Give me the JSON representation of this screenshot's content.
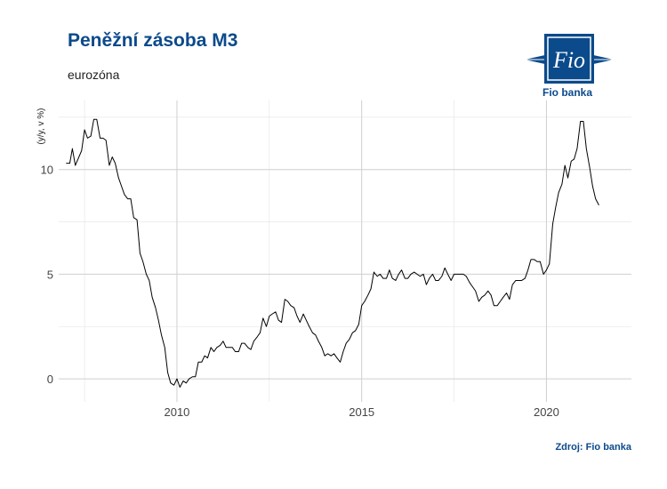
{
  "header": {
    "title": "Peněžní zásoba M3",
    "subtitle": "eurozóna"
  },
  "brand": {
    "logo_glyph": "Fio",
    "name": "Fio banka",
    "color": "#0b4a8b"
  },
  "footer": {
    "source": "Zdroj: Fio banka"
  },
  "chart_data": {
    "type": "line",
    "title": "Peněžní zásoba M3",
    "subtitle": "eurozóna",
    "xlabel": "",
    "ylabel": "(y/y, v %)",
    "xlim": [
      2006.8,
      2022.3
    ],
    "ylim": [
      -1.1,
      13.3
    ],
    "x_ticks": [
      2010,
      2015,
      2020
    ],
    "x_tick_labels": [
      "2010",
      "2015",
      "2020"
    ],
    "y_ticks": [
      0,
      5,
      10
    ],
    "y_tick_labels": [
      "0",
      "5",
      "10"
    ],
    "grid": true,
    "legend": "none",
    "line_color": "#000000",
    "series": [
      {
        "values": [
          [
            2007.0,
            10.3
          ],
          [
            2007.1,
            10.3
          ],
          [
            2007.17,
            11.0
          ],
          [
            2007.25,
            10.2
          ],
          [
            2007.42,
            10.9
          ],
          [
            2007.5,
            11.9
          ],
          [
            2007.58,
            11.5
          ],
          [
            2007.67,
            11.6
          ],
          [
            2007.75,
            12.4
          ],
          [
            2007.83,
            12.4
          ],
          [
            2007.92,
            11.5
          ],
          [
            2008.0,
            11.5
          ],
          [
            2008.08,
            11.4
          ],
          [
            2008.17,
            10.2
          ],
          [
            2008.25,
            10.6
          ],
          [
            2008.33,
            10.3
          ],
          [
            2008.42,
            9.6
          ],
          [
            2008.5,
            9.2
          ],
          [
            2008.58,
            8.8
          ],
          [
            2008.67,
            8.6
          ],
          [
            2008.75,
            8.6
          ],
          [
            2008.83,
            7.7
          ],
          [
            2008.92,
            7.6
          ],
          [
            2009.0,
            6.0
          ],
          [
            2009.08,
            5.6
          ],
          [
            2009.17,
            5.0
          ],
          [
            2009.25,
            4.7
          ],
          [
            2009.33,
            3.9
          ],
          [
            2009.42,
            3.4
          ],
          [
            2009.5,
            2.8
          ],
          [
            2009.58,
            2.1
          ],
          [
            2009.67,
            1.5
          ],
          [
            2009.75,
            0.3
          ],
          [
            2009.83,
            -0.2
          ],
          [
            2009.92,
            -0.3
          ],
          [
            2010.0,
            0.0
          ],
          [
            2010.08,
            -0.4
          ],
          [
            2010.17,
            -0.1
          ],
          [
            2010.25,
            -0.2
          ],
          [
            2010.33,
            0.0
          ],
          [
            2010.42,
            0.1
          ],
          [
            2010.5,
            0.1
          ],
          [
            2010.58,
            0.8
          ],
          [
            2010.67,
            0.8
          ],
          [
            2010.75,
            1.1
          ],
          [
            2010.83,
            1.0
          ],
          [
            2010.92,
            1.5
          ],
          [
            2011.0,
            1.3
          ],
          [
            2011.08,
            1.5
          ],
          [
            2011.17,
            1.6
          ],
          [
            2011.25,
            1.8
          ],
          [
            2011.33,
            1.5
          ],
          [
            2011.42,
            1.5
          ],
          [
            2011.5,
            1.5
          ],
          [
            2011.58,
            1.3
          ],
          [
            2011.67,
            1.3
          ],
          [
            2011.75,
            1.7
          ],
          [
            2011.83,
            1.7
          ],
          [
            2011.92,
            1.5
          ],
          [
            2012.0,
            1.4
          ],
          [
            2012.08,
            1.8
          ],
          [
            2012.17,
            2.0
          ],
          [
            2012.25,
            2.2
          ],
          [
            2012.33,
            2.9
          ],
          [
            2012.42,
            2.5
          ],
          [
            2012.5,
            3.0
          ],
          [
            2012.58,
            3.1
          ],
          [
            2012.67,
            3.2
          ],
          [
            2012.75,
            2.8
          ],
          [
            2012.83,
            2.7
          ],
          [
            2012.92,
            3.8
          ],
          [
            2013.0,
            3.7
          ],
          [
            2013.08,
            3.5
          ],
          [
            2013.17,
            3.4
          ],
          [
            2013.25,
            3.0
          ],
          [
            2013.33,
            2.7
          ],
          [
            2013.42,
            3.1
          ],
          [
            2013.5,
            2.8
          ],
          [
            2013.58,
            2.5
          ],
          [
            2013.67,
            2.2
          ],
          [
            2013.75,
            2.1
          ],
          [
            2013.83,
            1.8
          ],
          [
            2013.92,
            1.5
          ],
          [
            2014.0,
            1.1
          ],
          [
            2014.08,
            1.2
          ],
          [
            2014.17,
            1.1
          ],
          [
            2014.25,
            1.2
          ],
          [
            2014.33,
            1.0
          ],
          [
            2014.42,
            0.8
          ],
          [
            2014.5,
            1.3
          ],
          [
            2014.58,
            1.7
          ],
          [
            2014.67,
            1.9
          ],
          [
            2014.75,
            2.2
          ],
          [
            2014.83,
            2.3
          ],
          [
            2014.92,
            2.6
          ],
          [
            2015.0,
            3.5
          ],
          [
            2015.08,
            3.7
          ],
          [
            2015.17,
            4.0
          ],
          [
            2015.25,
            4.3
          ],
          [
            2015.33,
            5.1
          ],
          [
            2015.42,
            4.9
          ],
          [
            2015.5,
            5.0
          ],
          [
            2015.58,
            4.8
          ],
          [
            2015.67,
            4.8
          ],
          [
            2015.75,
            5.2
          ],
          [
            2015.83,
            4.8
          ],
          [
            2015.92,
            4.7
          ],
          [
            2016.0,
            5.0
          ],
          [
            2016.08,
            5.2
          ],
          [
            2016.17,
            4.8
          ],
          [
            2016.25,
            4.8
          ],
          [
            2016.33,
            5.0
          ],
          [
            2016.42,
            5.1
          ],
          [
            2016.5,
            5.0
          ],
          [
            2016.58,
            4.9
          ],
          [
            2016.67,
            5.0
          ],
          [
            2016.75,
            4.5
          ],
          [
            2016.83,
            4.8
          ],
          [
            2016.92,
            5.0
          ],
          [
            2017.0,
            4.7
          ],
          [
            2017.08,
            4.7
          ],
          [
            2017.17,
            4.9
          ],
          [
            2017.25,
            5.3
          ],
          [
            2017.33,
            5.0
          ],
          [
            2017.42,
            4.7
          ],
          [
            2017.5,
            5.0
          ],
          [
            2017.58,
            5.0
          ],
          [
            2017.67,
            5.0
          ],
          [
            2017.75,
            5.0
          ],
          [
            2017.83,
            4.9
          ],
          [
            2017.92,
            4.6
          ],
          [
            2018.0,
            4.4
          ],
          [
            2018.08,
            4.2
          ],
          [
            2018.17,
            3.7
          ],
          [
            2018.25,
            3.9
          ],
          [
            2018.33,
            4.0
          ],
          [
            2018.42,
            4.2
          ],
          [
            2018.5,
            4.0
          ],
          [
            2018.58,
            3.5
          ],
          [
            2018.67,
            3.5
          ],
          [
            2018.75,
            3.7
          ],
          [
            2018.83,
            3.9
          ],
          [
            2018.92,
            4.1
          ],
          [
            2019.0,
            3.8
          ],
          [
            2019.08,
            4.5
          ],
          [
            2019.17,
            4.7
          ],
          [
            2019.25,
            4.7
          ],
          [
            2019.33,
            4.7
          ],
          [
            2019.42,
            4.8
          ],
          [
            2019.5,
            5.2
          ],
          [
            2019.58,
            5.7
          ],
          [
            2019.67,
            5.7
          ],
          [
            2019.75,
            5.6
          ],
          [
            2019.83,
            5.6
          ],
          [
            2019.92,
            5.0
          ],
          [
            2020.0,
            5.2
          ],
          [
            2020.08,
            5.5
          ],
          [
            2020.17,
            7.4
          ],
          [
            2020.25,
            8.2
          ],
          [
            2020.33,
            8.9
          ],
          [
            2020.42,
            9.3
          ],
          [
            2020.5,
            10.2
          ],
          [
            2020.58,
            9.6
          ],
          [
            2020.67,
            10.4
          ],
          [
            2020.75,
            10.5
          ],
          [
            2020.83,
            11.0
          ],
          [
            2020.92,
            12.3
          ],
          [
            2021.0,
            12.3
          ],
          [
            2021.08,
            11.0
          ],
          [
            2021.17,
            10.1
          ],
          [
            2021.25,
            9.2
          ],
          [
            2021.33,
            8.6
          ],
          [
            2021.42,
            8.3
          ]
        ]
      }
    ]
  }
}
